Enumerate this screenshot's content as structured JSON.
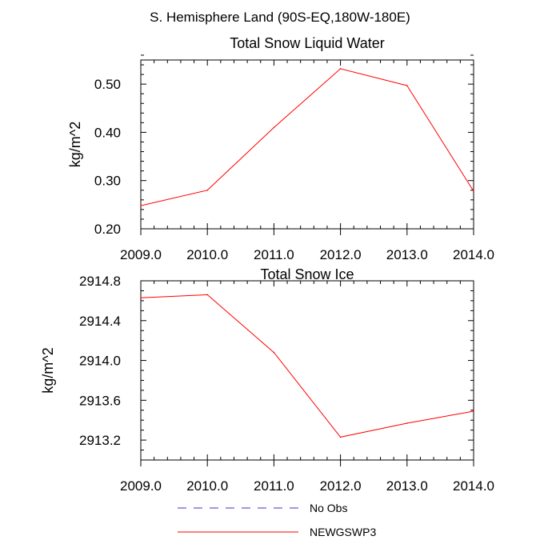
{
  "suptitle": "S. Hemisphere Land (90S-EQ,180W-180E)",
  "chart_data": [
    {
      "type": "line",
      "title": "Total Snow Liquid Water",
      "xlabel": "",
      "ylabel": "kg/m^2",
      "xlim": [
        2009.0,
        2014.0
      ],
      "ylim": [
        0.2,
        0.55
      ],
      "x_ticks": [
        2009.0,
        2010.0,
        2011.0,
        2012.0,
        2013.0,
        2014.0
      ],
      "x_tick_labels": [
        "2009.0",
        "2010.0",
        "2011.0",
        "2012.0",
        "2013.0",
        "2014.0"
      ],
      "y_ticks": [
        0.2,
        0.3,
        0.4,
        0.5
      ],
      "y_tick_labels": [
        "0.20",
        "0.30",
        "0.40",
        "0.50"
      ],
      "x": [
        2009.0,
        2010.0,
        2011.0,
        2012.0,
        2013.0,
        2014.0
      ],
      "series": [
        {
          "name": "NEWGSWP3",
          "color": "#ff0000",
          "values": [
            0.248,
            0.28,
            0.41,
            0.532,
            0.497,
            0.278
          ]
        }
      ]
    },
    {
      "type": "line",
      "title": "Total Snow Ice",
      "xlabel": "",
      "ylabel": "kg/m^2",
      "xlim": [
        2009.0,
        2014.0
      ],
      "ylim": [
        2913.0,
        2914.8
      ],
      "x_ticks": [
        2009.0,
        2010.0,
        2011.0,
        2012.0,
        2013.0,
        2014.0
      ],
      "x_tick_labels": [
        "2009.0",
        "2010.0",
        "2011.0",
        "2012.0",
        "2013.0",
        "2014.0"
      ],
      "y_ticks": [
        2913.2,
        2913.6,
        2914.0,
        2914.4,
        2914.8
      ],
      "y_tick_labels": [
        "2913.2",
        "2913.6",
        "2914.0",
        "2914.4",
        "2914.8"
      ],
      "x": [
        2009.0,
        2010.0,
        2011.0,
        2012.0,
        2013.0,
        2014.0
      ],
      "series": [
        {
          "name": "NEWGSWP3",
          "color": "#ff0000",
          "values": [
            2914.63,
            2914.66,
            2914.08,
            2913.23,
            2913.37,
            2913.49
          ]
        }
      ]
    }
  ],
  "legend": {
    "placement": "bottom-center",
    "items": [
      {
        "label": "No Obs",
        "color": "#3333cc",
        "style": "dashed"
      },
      {
        "label": "NEWGSWP3",
        "color": "#ff0000",
        "style": "solid"
      }
    ]
  }
}
